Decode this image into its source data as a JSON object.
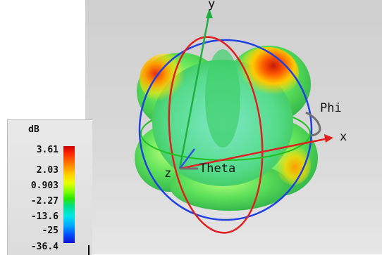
{
  "pattern_view": {
    "axis_labels": {
      "x": "x",
      "y": "y",
      "z": "z"
    },
    "angle_labels": {
      "phi": "Phi",
      "theta": "Theta"
    },
    "colors": {
      "x_axis": "#e02020",
      "y_axis": "#20b040",
      "z_axis": "#3050e0",
      "phi_ring": "#2040e0",
      "theta_ring": "#e02020",
      "equator_ring": "#20c020"
    }
  },
  "legend": {
    "unit": "dB",
    "ticks": [
      "3.61",
      "2.03",
      "0.903",
      "-2.27",
      "-13.6",
      "-25",
      "-36.4"
    ],
    "range": [
      -36.4,
      3.61
    ]
  }
}
